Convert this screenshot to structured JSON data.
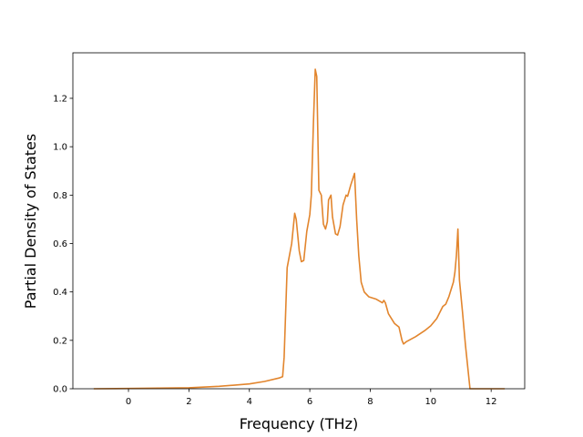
{
  "chart_data": {
    "type": "line",
    "xlabel": "Frequency (THz)",
    "ylabel": "Partial Density of States",
    "x": [
      -1.15,
      0,
      2,
      3,
      4,
      4.5,
      5,
      5.1,
      5.15,
      5.25,
      5.4,
      5.5,
      5.55,
      5.65,
      5.72,
      5.8,
      5.9,
      6.0,
      6.05,
      6.12,
      6.18,
      6.23,
      6.3,
      6.38,
      6.45,
      6.52,
      6.58,
      6.62,
      6.7,
      6.75,
      6.85,
      6.92,
      7.0,
      7.1,
      7.2,
      7.25,
      7.35,
      7.48,
      7.55,
      7.62,
      7.7,
      7.8,
      7.95,
      8.2,
      8.4,
      8.45,
      8.5,
      8.6,
      8.8,
      8.95,
      9.05,
      9.1,
      9.2,
      9.5,
      9.8,
      10.0,
      10.2,
      10.4,
      10.5,
      10.6,
      10.65,
      10.75,
      10.8,
      10.85,
      10.9,
      10.95,
      11.05,
      11.15,
      11.3,
      12.45
    ],
    "series": [
      {
        "color": "#e2852d",
        "values": [
          0,
          0.001,
          0.004,
          0.01,
          0.02,
          0.03,
          0.045,
          0.05,
          0.13,
          0.5,
          0.6,
          0.725,
          0.7,
          0.57,
          0.525,
          0.53,
          0.65,
          0.72,
          0.8,
          1.1,
          1.32,
          1.29,
          0.82,
          0.8,
          0.68,
          0.66,
          0.69,
          0.78,
          0.8,
          0.71,
          0.64,
          0.635,
          0.67,
          0.76,
          0.8,
          0.795,
          0.84,
          0.89,
          0.7,
          0.55,
          0.44,
          0.4,
          0.38,
          0.37,
          0.355,
          0.365,
          0.355,
          0.31,
          0.27,
          0.255,
          0.2,
          0.185,
          0.195,
          0.215,
          0.24,
          0.26,
          0.29,
          0.34,
          0.35,
          0.38,
          0.4,
          0.44,
          0.48,
          0.55,
          0.66,
          0.45,
          0.32,
          0.18,
          0,
          0
        ]
      }
    ],
    "xlim": [
      -1.84,
      13.11
    ],
    "ylim": [
      0,
      1.388
    ],
    "xticks": [
      0,
      2,
      4,
      6,
      8,
      10,
      12
    ],
    "yticks": [
      {
        "value": 0,
        "label": "0.0"
      },
      {
        "value": 0.2,
        "label": "0.2"
      },
      {
        "value": 0.4,
        "label": "0.4"
      },
      {
        "value": 0.6,
        "label": "0.6"
      },
      {
        "value": 0.8,
        "label": "0.8"
      },
      {
        "value": 1.0,
        "label": "1.0"
      },
      {
        "value": 1.2,
        "label": "1.2"
      }
    ],
    "grid": false
  }
}
